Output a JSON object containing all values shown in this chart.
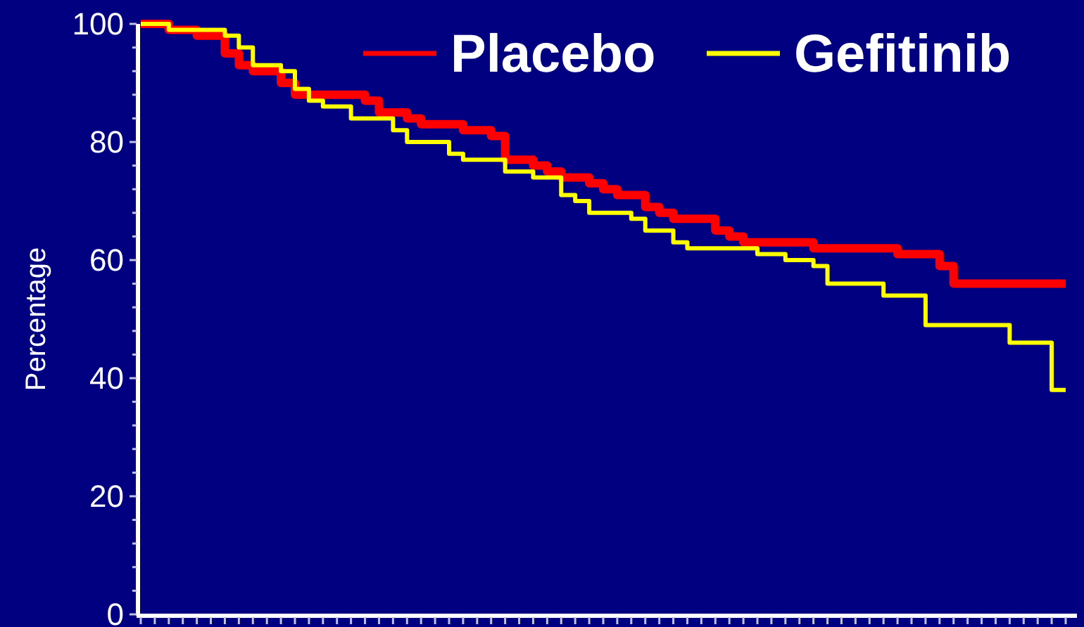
{
  "chart_data": {
    "type": "step",
    "ylabel": "Percentage",
    "categories": [
      null,
      null,
      null,
      null,
      null,
      null,
      null,
      null,
      null,
      null,
      null,
      null,
      null,
      null,
      null,
      null,
      null,
      null,
      null,
      null,
      null,
      null,
      null,
      null,
      null,
      null,
      null,
      null,
      null,
      null,
      null,
      null,
      null,
      null,
      null,
      null,
      null,
      null,
      null,
      null,
      null,
      null,
      null,
      null,
      null,
      null,
      null,
      null,
      null,
      null,
      null,
      null,
      null,
      null,
      null,
      null,
      null,
      null,
      null,
      null,
      null,
      null,
      null,
      null,
      null,
      null,
      null
    ],
    "series": [
      {
        "name": "Placebo",
        "color": "#ff0000",
        "values": [
          100,
          100,
          99,
          99,
          98,
          98,
          95,
          93,
          92,
          92,
          90,
          88,
          88,
          88,
          88,
          88,
          87,
          85,
          85,
          84,
          83,
          83,
          83,
          82,
          82,
          81,
          77,
          77,
          76,
          75,
          74,
          74,
          73,
          72,
          71,
          71,
          69,
          68,
          67,
          67,
          67,
          65,
          64,
          63,
          63,
          63,
          63,
          63,
          62,
          62,
          62,
          62,
          62,
          62,
          61,
          61,
          61,
          59,
          56,
          56,
          56,
          56,
          56,
          56,
          56,
          56,
          56
        ]
      },
      {
        "name": "Gefitinib",
        "color": "#ffff00",
        "values": [
          100,
          100,
          99,
          99,
          99,
          99,
          98,
          96,
          93,
          93,
          92,
          89,
          87,
          86,
          86,
          84,
          84,
          84,
          82,
          80,
          80,
          80,
          78,
          77,
          77,
          77,
          75,
          75,
          74,
          74,
          71,
          70,
          68,
          68,
          68,
          67,
          65,
          65,
          63,
          62,
          62,
          62,
          62,
          62,
          61,
          61,
          60,
          60,
          59,
          56,
          56,
          56,
          56,
          54,
          54,
          54,
          49,
          49,
          49,
          49,
          49,
          49,
          46,
          46,
          46,
          38,
          38
        ]
      }
    ],
    "ylim": [
      0,
      100
    ],
    "yticks": [
      0,
      {
        "value": 4,
        "label": null
      },
      {
        "value": 8,
        "label": null
      },
      {
        "value": 12,
        "label": null
      },
      {
        "value": 16,
        "label": null
      },
      20,
      {
        "value": 24,
        "label": null
      },
      {
        "value": 28,
        "label": null
      },
      {
        "value": 32,
        "label": null
      },
      {
        "value": 36,
        "label": null
      },
      40,
      {
        "value": 44,
        "label": null
      },
      {
        "value": 48,
        "label": null
      },
      {
        "value": 52,
        "label": null
      },
      {
        "value": 56,
        "label": null
      },
      60,
      {
        "value": 64,
        "label": null
      },
      {
        "value": 68,
        "label": null
      },
      {
        "value": 72,
        "label": null
      },
      {
        "value": 76,
        "label": null
      },
      80,
      {
        "value": 84,
        "label": null
      },
      {
        "value": 88,
        "label": null
      },
      {
        "value": 92,
        "label": null
      },
      {
        "value": 96,
        "label": null
      },
      100
    ],
    "legend": "top right",
    "grid": false,
    "marker": "none",
    "line_style": "solid"
  }
}
